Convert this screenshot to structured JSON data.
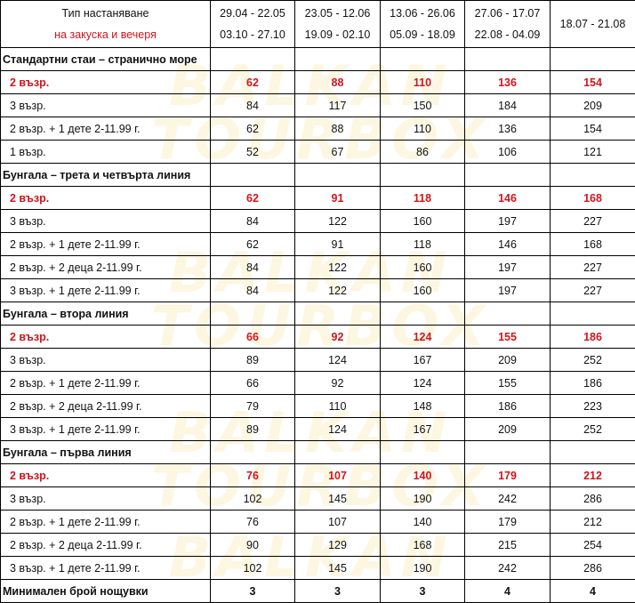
{
  "watermark": [
    "BALKAN",
    "TOURBOX"
  ],
  "colors": {
    "highlight": "#d0151b",
    "border": "#000000",
    "watermark": "#f5d778"
  },
  "header": {
    "type_label": "Тип настаняване",
    "board_label": "на закуска и вечеря",
    "periods": [
      [
        "29.04 - 22.05",
        "03.10 - 27.10"
      ],
      [
        "23.05 - 12.06",
        "19.09 - 02.10"
      ],
      [
        "13.06 - 26.06",
        "05.09 - 18.09"
      ],
      [
        "27.06 - 17.07",
        "22.08 - 04.09"
      ],
      [
        "18.07 - 21.08"
      ]
    ]
  },
  "sections": [
    {
      "title": "Стандартни стаи – странично море",
      "rows": [
        {
          "label": "2 възр.",
          "highlight": true,
          "values": [
            "62",
            "88",
            "110",
            "136",
            "154"
          ]
        },
        {
          "label": "3 възр.",
          "values": [
            "84",
            "117",
            "150",
            "184",
            "209"
          ]
        },
        {
          "label": "2 възр. + 1 дете 2-11.99 г.",
          "values": [
            "62",
            "88",
            "110",
            "136",
            "154"
          ]
        },
        {
          "label": "1 възр.",
          "values": [
            "52",
            "67",
            "86",
            "106",
            "121"
          ]
        }
      ]
    },
    {
      "title": "Бунгала – трета и четвърта линия",
      "rows": [
        {
          "label": "2 възр.",
          "highlight": true,
          "values": [
            "62",
            "91",
            "118",
            "146",
            "168"
          ]
        },
        {
          "label": "3 възр.",
          "values": [
            "84",
            "122",
            "160",
            "197",
            "227"
          ]
        },
        {
          "label": "2 възр. + 1 дете 2-11.99 г.",
          "values": [
            "62",
            "91",
            "118",
            "146",
            "168"
          ]
        },
        {
          "label": "2 възр. + 2 деца 2-11.99 г.",
          "values": [
            "84",
            "122",
            "160",
            "197",
            "227"
          ]
        },
        {
          "label": "3 възр. + 1 дете 2-11.99 г.",
          "values": [
            "84",
            "122",
            "160",
            "197",
            "227"
          ]
        }
      ]
    },
    {
      "title": "Бунгала – втора линия",
      "rows": [
        {
          "label": "2 възр.",
          "highlight": true,
          "values": [
            "66",
            "92",
            "124",
            "155",
            "186"
          ]
        },
        {
          "label": "3 възр.",
          "values": [
            "89",
            "124",
            "167",
            "209",
            "252"
          ]
        },
        {
          "label": "2 възр. + 1 дете 2-11.99 г.",
          "values": [
            "66",
            "92",
            "124",
            "155",
            "186"
          ]
        },
        {
          "label": "2 възр. + 2 деца 2-11.99 г.",
          "values": [
            "79",
            "110",
            "148",
            "186",
            "223"
          ]
        },
        {
          "label": "3 възр. + 1 дете 2-11.99 г.",
          "values": [
            "89",
            "124",
            "167",
            "209",
            "252"
          ]
        }
      ]
    },
    {
      "title": "Бунгала – първа линия",
      "rows": [
        {
          "label": "2 възр.",
          "highlight": true,
          "values": [
            "76",
            "107",
            "140",
            "179",
            "212"
          ]
        },
        {
          "label": "3 възр.",
          "values": [
            "102",
            "145",
            "190",
            "242",
            "286"
          ]
        },
        {
          "label": "2 възр. + 1 дете 2-11.99 г.",
          "values": [
            "76",
            "107",
            "140",
            "179",
            "212"
          ]
        },
        {
          "label": "2 възр. + 2 деца 2-11.99 г.",
          "values": [
            "90",
            "129",
            "168",
            "215",
            "254"
          ]
        },
        {
          "label": "3 възр. + 1 дете 2-11.99 г.",
          "values": [
            "102",
            "145",
            "190",
            "242",
            "286"
          ]
        }
      ]
    }
  ],
  "min_nights": {
    "label": "Минимален брой нощувки",
    "values": [
      "3",
      "3",
      "3",
      "4",
      "4"
    ]
  }
}
